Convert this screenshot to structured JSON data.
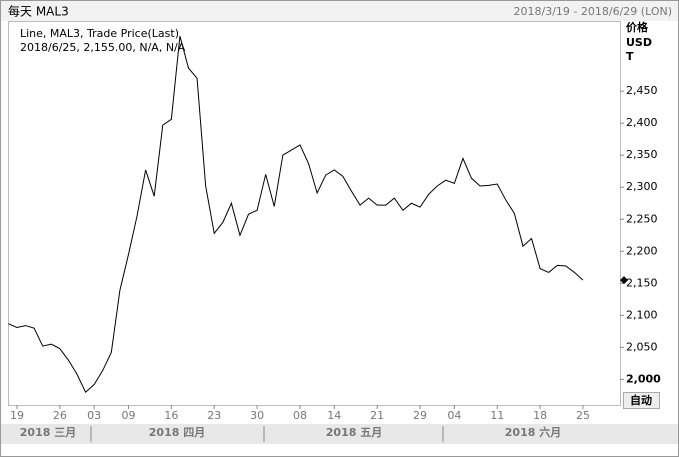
{
  "chart_data": {
    "type": "line",
    "title": "每天 MAL3",
    "subtitle": "2018/3/19 - 2018/6/29 (LON)",
    "legend_lines": [
      "Line, MAL3, Trade Price(Last)",
      "2018/6/25, 2,155.00, N/A, N/A"
    ],
    "y_label_lines": [
      "价格",
      "USD",
      "T"
    ],
    "button": "自动",
    "months": [
      "2018 三月",
      "2018 四月",
      "2018 五月",
      "2018 六月"
    ],
    "categories": [
      null,
      "19",
      null,
      null,
      null,
      null,
      "26",
      null,
      null,
      null,
      "03",
      null,
      null,
      null,
      "09",
      null,
      null,
      null,
      null,
      "16",
      null,
      null,
      null,
      null,
      "23",
      null,
      null,
      null,
      null,
      "30",
      null,
      null,
      null,
      null,
      "08",
      null,
      null,
      null,
      "14",
      null,
      null,
      null,
      null,
      "21",
      null,
      null,
      null,
      null,
      "29",
      null,
      null,
      null,
      "04",
      null,
      null,
      null,
      null,
      "11",
      null,
      null,
      null,
      null,
      "18",
      null,
      null,
      null,
      null,
      "25"
    ],
    "series": [
      {
        "name": "MAL3",
        "color": "#000000",
        "values": [
          2087,
          2081,
          2084,
          2080,
          2052,
          2055,
          2048,
          2030,
          2008,
          1980,
          1992,
          2014,
          2042,
          2139,
          2195,
          2255,
          2327,
          2286,
          2397,
          2406,
          2536,
          2486,
          2470,
          2302,
          2228,
          2245,
          2275,
          2225,
          2258,
          2264,
          2320,
          2270,
          2350,
          2358,
          2366,
          2337,
          2291,
          2319,
          2327,
          2317,
          2294,
          2272,
          2283,
          2272,
          2272,
          2283,
          2264,
          2275,
          2269,
          2289,
          2302,
          2311,
          2306,
          2345,
          2314,
          2302,
          2303,
          2305,
          2280,
          2259,
          2208,
          2220,
          2173,
          2167,
          2178,
          2177,
          2167,
          2155
        ]
      }
    ],
    "ylim": [
      1960,
      2558
    ],
    "yticks": [
      {
        "value": 2000,
        "label": "2,000"
      },
      {
        "value": 2050,
        "label": "2,050"
      },
      {
        "value": 2100,
        "label": "2,100"
      },
      {
        "value": 2150,
        "label": "2,150"
      },
      {
        "value": 2200,
        "label": "2,200"
      },
      {
        "value": 2250,
        "label": "2,250"
      },
      {
        "value": 2300,
        "label": "2,300"
      },
      {
        "value": 2350,
        "label": "2,350"
      },
      {
        "value": 2400,
        "label": "2,400"
      },
      {
        "value": 2450,
        "label": "2,450"
      }
    ],
    "grid": false
  }
}
